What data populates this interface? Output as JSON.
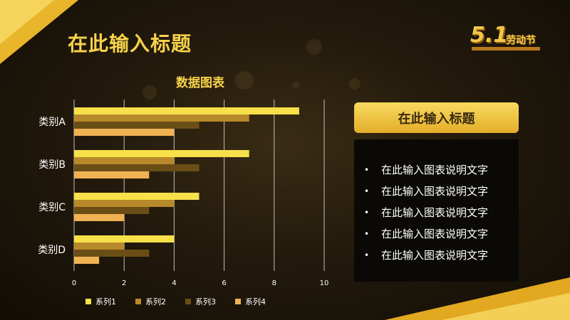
{
  "slide": {
    "title": "在此输入标题",
    "logo_number": "5.1",
    "logo_text": "劳动节"
  },
  "panel": {
    "header": "在此输入标题",
    "items": [
      "在此输入图表说明文字",
      "在此输入图表说明文字",
      "在此输入图表说明文字",
      "在此输入图表说明文字",
      "在此输入图表说明文字"
    ]
  },
  "chart_data": {
    "type": "bar",
    "orientation": "horizontal",
    "title": "数据图表",
    "categories": [
      "类别A",
      "类别B",
      "类别C",
      "类别D"
    ],
    "series": [
      {
        "name": "系列1",
        "values": [
          9,
          7,
          5,
          4
        ],
        "color": "#f7e04a"
      },
      {
        "name": "系列2",
        "values": [
          7,
          4,
          4,
          2
        ],
        "color": "#b8892a"
      },
      {
        "name": "系列3",
        "values": [
          5,
          5,
          3,
          3
        ],
        "color": "#6a4e16"
      },
      {
        "name": "系列4",
        "values": [
          4,
          3,
          2,
          1
        ],
        "color": "#f0b252"
      }
    ],
    "xlim": [
      0,
      10
    ],
    "xticks": [
      0,
      2,
      4,
      6,
      8,
      10
    ],
    "grid": true,
    "legend_position": "bottom",
    "text_color": "#ffffff",
    "grid_color": "#bfbfbf"
  }
}
